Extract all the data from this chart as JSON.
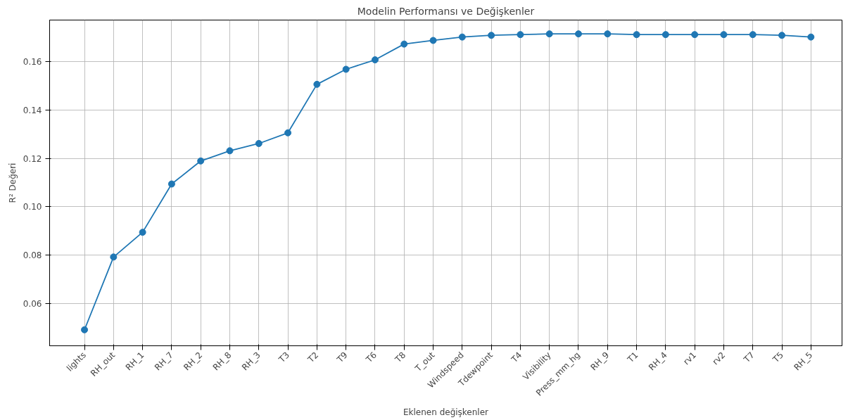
{
  "chart_data": {
    "type": "line",
    "title": "Modelin Performansı ve Değişkenler",
    "xlabel": "Eklenen değişkenler",
    "ylabel": "R² Değeri",
    "categories": [
      "lights",
      "RH_out",
      "RH_1",
      "RH_7",
      "RH_2",
      "RH_8",
      "RH_3",
      "T3",
      "T2",
      "T9",
      "T6",
      "T8",
      "T_out",
      "Windspeed",
      "Tdewpoint",
      "T4",
      "Visibility",
      "Press_mm_hg",
      "RH_9",
      "T1",
      "RH_4",
      "rv1",
      "rv2",
      "T7",
      "T5",
      "RH_5"
    ],
    "series": [
      {
        "color": "#1f77b4",
        "values": [
          0.0493,
          0.0793,
          0.0895,
          0.1094,
          0.1189,
          0.1231,
          0.1261,
          0.1305,
          0.1505,
          0.1567,
          0.1606,
          0.1671,
          0.1686,
          0.17,
          0.1707,
          0.171,
          0.1713,
          0.1713,
          0.1713,
          0.171,
          0.171,
          0.171,
          0.171,
          0.171,
          0.1707,
          0.17
        ]
      }
    ],
    "ylim": [
      0.0427,
      0.177
    ],
    "yticks": [
      0.06,
      0.08,
      {
        "value": 0.1,
        "label": "0.10"
      },
      0.12,
      0.14,
      0.16
    ],
    "grid": true,
    "marker": "circle",
    "line_style": "solid"
  }
}
